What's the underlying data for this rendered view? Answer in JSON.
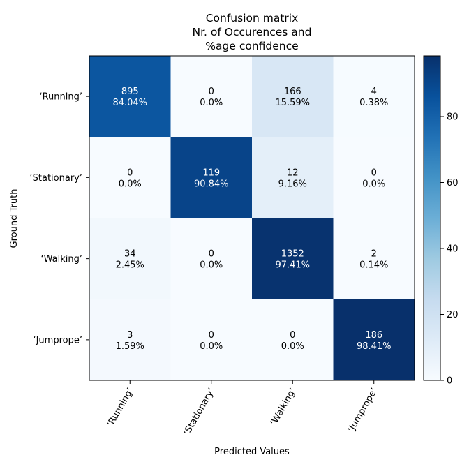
{
  "chart_data": {
    "type": "heatmap",
    "title_lines": [
      "Confusion matrix",
      "Nr. of Occurences and",
      "%age confidence"
    ],
    "xlabel": "Predicted Values",
    "ylabel": "Ground Truth",
    "row_labels": [
      "‘Running’",
      "‘Stationary’",
      "‘Walking’",
      "‘Jumprope’"
    ],
    "col_labels": [
      "‘Running’",
      "‘Stationary’",
      "‘Walking’",
      "‘Jumprope’"
    ],
    "counts": [
      [
        895,
        0,
        166,
        4
      ],
      [
        0,
        119,
        12,
        0
      ],
      [
        34,
        0,
        1352,
        2
      ],
      [
        3,
        0,
        0,
        186
      ]
    ],
    "percent_labels": [
      [
        "84.04%",
        "0.0%",
        "15.59%",
        "0.38%"
      ],
      [
        "0.0%",
        "90.84%",
        "9.16%",
        "0.0%"
      ],
      [
        "2.45%",
        "0.0%",
        "97.41%",
        "0.14%"
      ],
      [
        "1.59%",
        "0.0%",
        "0.0%",
        "98.41%"
      ]
    ],
    "percent_values": [
      [
        84.04,
        0.0,
        15.59,
        0.38
      ],
      [
        0.0,
        90.84,
        9.16,
        0.0
      ],
      [
        2.45,
        0.0,
        97.41,
        0.14
      ],
      [
        1.59,
        0.0,
        0.0,
        98.41
      ]
    ],
    "colormap": "Blues",
    "colorbar": {
      "range": [
        0,
        98.41
      ],
      "ticks": [
        0,
        20,
        40,
        60,
        80
      ]
    },
    "grid": false
  }
}
